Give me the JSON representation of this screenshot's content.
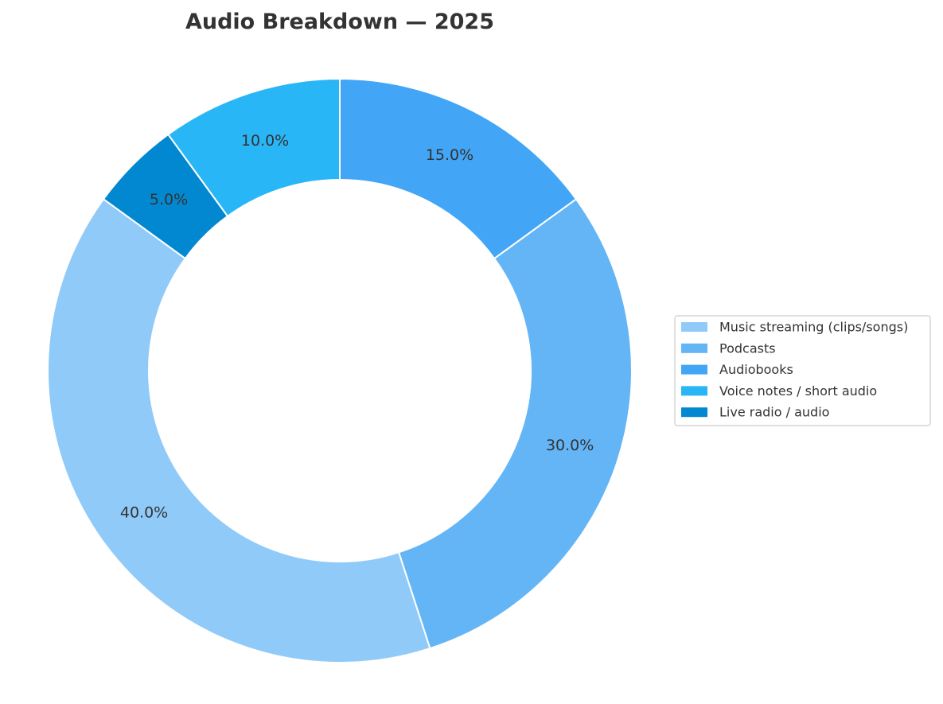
{
  "chart_data": {
    "type": "pie",
    "variant": "donut",
    "title": "Audio Breakdown — 2025",
    "categories": [
      "Music streaming (clips/songs)",
      "Podcasts",
      "Audiobooks",
      "Voice notes / short audio",
      "Live radio / audio"
    ],
    "values": [
      40,
      30,
      15,
      10,
      5
    ],
    "value_labels": [
      "40.0%",
      "30.0%",
      "15.0%",
      "10.0%",
      "5.0%"
    ],
    "colors": [
      "#90caf9",
      "#64b5f6",
      "#42a5f5",
      "#29b6f6",
      "#0288d1"
    ],
    "start_angle_deg": 144,
    "direction": "counterclockwise",
    "legend_position": "right"
  }
}
